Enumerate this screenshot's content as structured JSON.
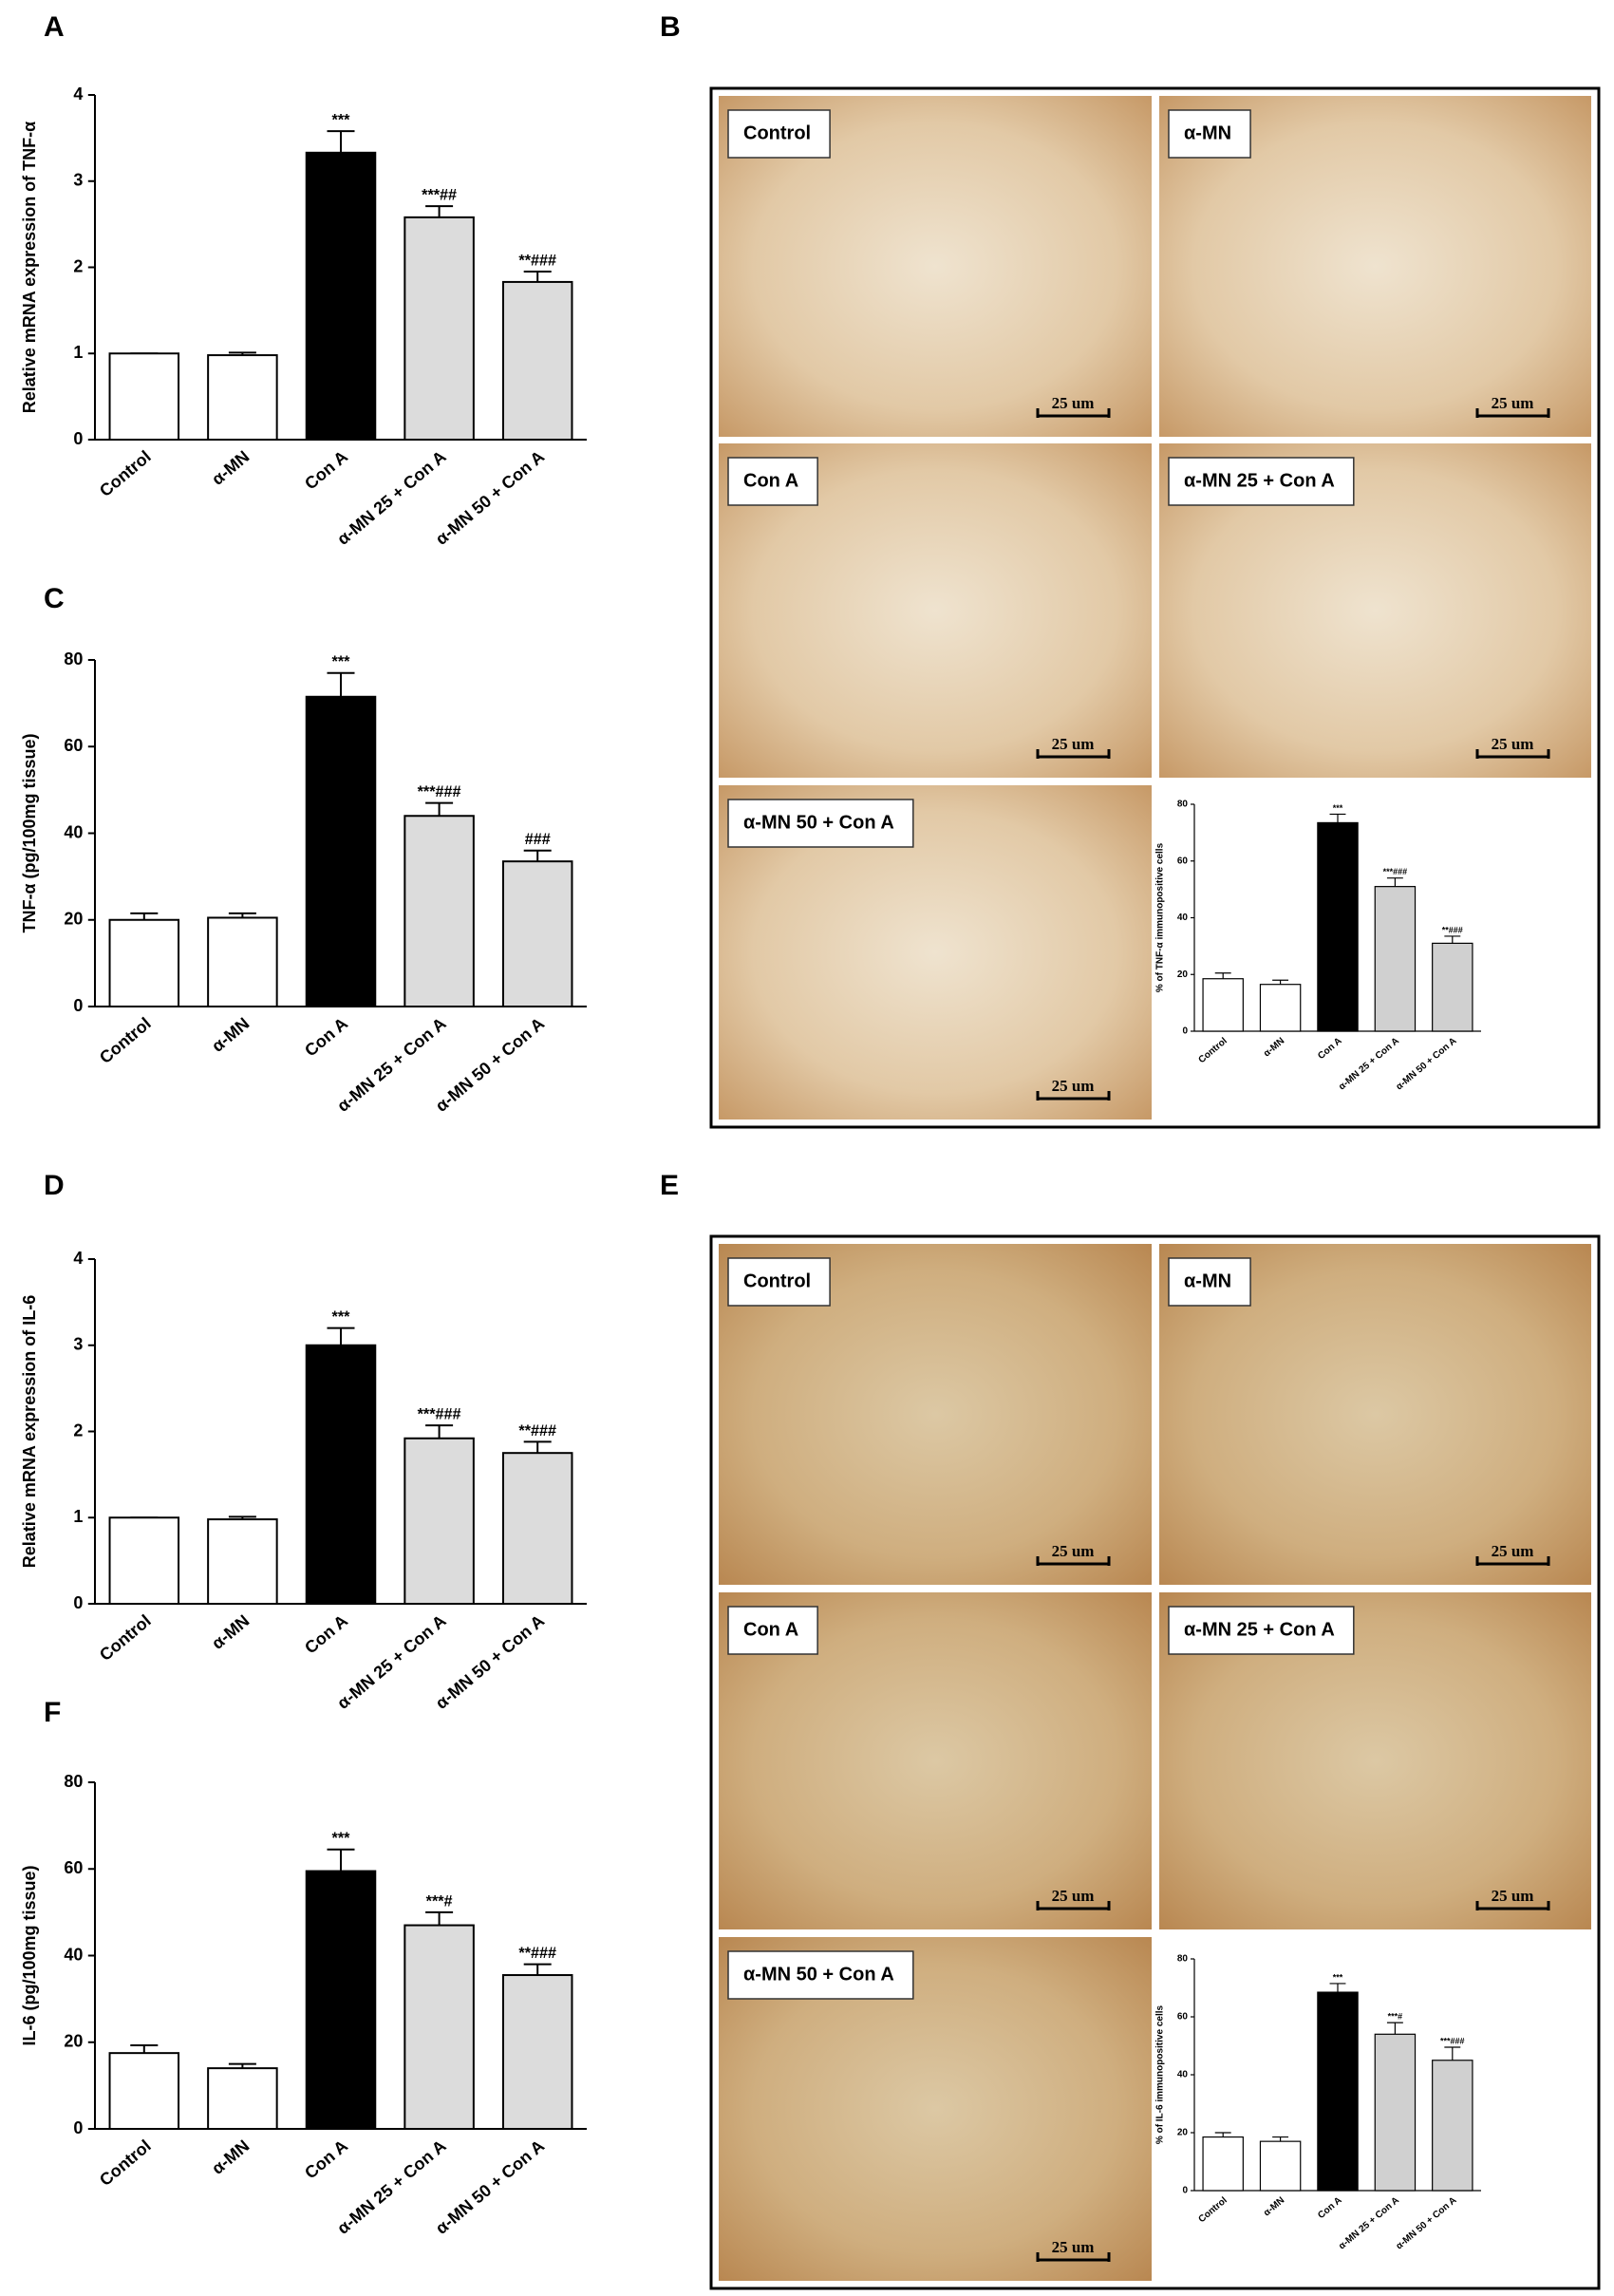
{
  "panel_letters": [
    "A",
    "B",
    "C",
    "D",
    "E",
    "F"
  ],
  "chart_data": [
    {
      "type": "bar",
      "ylabel": "Relative mRNA expression of TNF-α",
      "categories": [
        "Control",
        "α-MN",
        "Con A",
        "α-MN 25 + Con A",
        "α-MN 50 + Con A"
      ],
      "values": [
        1.0,
        0.98,
        3.33,
        2.58,
        1.83
      ],
      "errors": [
        0,
        0.03,
        0.25,
        0.13,
        0.12
      ],
      "annotations": [
        null,
        null,
        "***",
        "***##",
        "**###"
      ],
      "colors": [
        "#ffffff",
        "#ffffff",
        "#000000",
        "#dcdcdc",
        "#dcdcdc"
      ],
      "ylim": [
        0,
        4
      ],
      "yticks": [
        0,
        1,
        2,
        3,
        4
      ]
    },
    {
      "type": "bar",
      "ylabel": "TNF-α (pg/100mg tissue)",
      "categories": [
        "Control",
        "α-MN",
        "Con A",
        "α-MN 25 + Con A",
        "α-MN 50 + Con A"
      ],
      "values": [
        20,
        20.5,
        71.5,
        44,
        33.5
      ],
      "errors": [
        1.5,
        1,
        5.5,
        3,
        2.5
      ],
      "annotations": [
        null,
        null,
        "***",
        "***###",
        "###"
      ],
      "colors": [
        "#ffffff",
        "#ffffff",
        "#000000",
        "#dcdcdc",
        "#dcdcdc"
      ],
      "ylim": [
        0,
        80
      ],
      "yticks": [
        0,
        20,
        40,
        60,
        80
      ]
    },
    {
      "type": "bar",
      "ylabel": "Relative mRNA expression of IL-6",
      "categories": [
        "Control",
        "α-MN",
        "Con A",
        "α-MN 25 + Con A",
        "α-MN 50 + Con A"
      ],
      "values": [
        1.0,
        0.98,
        3.0,
        1.92,
        1.75
      ],
      "errors": [
        0,
        0.03,
        0.2,
        0.15,
        0.13
      ],
      "annotations": [
        null,
        null,
        "***",
        "***###",
        "**###"
      ],
      "colors": [
        "#ffffff",
        "#ffffff",
        "#000000",
        "#dcdcdc",
        "#dcdcdc"
      ],
      "ylim": [
        0,
        4
      ],
      "yticks": [
        0,
        1,
        2,
        3,
        4
      ]
    },
    {
      "type": "bar",
      "ylabel": "IL-6 (pg/100mg tissue)",
      "categories": [
        "Control",
        "α-MN",
        "Con A",
        "α-MN 25 + Con A",
        "α-MN 50 + Con A"
      ],
      "values": [
        17.5,
        14,
        59.5,
        47,
        35.5
      ],
      "errors": [
        1.8,
        1,
        5,
        3,
        2.5
      ],
      "annotations": [
        null,
        null,
        "***",
        "***#",
        "**###"
      ],
      "colors": [
        "#ffffff",
        "#ffffff",
        "#000000",
        "#dcdcdc",
        "#dcdcdc"
      ],
      "ylim": [
        0,
        80
      ],
      "yticks": [
        0,
        20,
        40,
        60,
        80
      ]
    },
    {
      "type": "bar",
      "ylabel": "% of TNF-α immunopositive cells",
      "categories": [
        "Control",
        "α-MN",
        "Con A",
        "α-MN 25 + Con A",
        "α-MN 50 + Con A"
      ],
      "values": [
        18.5,
        16.5,
        73.5,
        51,
        31
      ],
      "errors": [
        2,
        1.5,
        3,
        3,
        2.5
      ],
      "annotations": [
        null,
        null,
        "***",
        "***###",
        "**###"
      ],
      "colors": [
        "#ffffff",
        "#ffffff",
        "#000000",
        "#d0d0d0",
        "#d0d0d0"
      ],
      "ylim": [
        0,
        80
      ],
      "yticks": [
        0,
        20,
        40,
        60,
        80
      ]
    },
    {
      "type": "bar",
      "ylabel": "% of IL-6 immunopositive cells",
      "categories": [
        "Control",
        "α-MN",
        "Con A",
        "α-MN 25 + Con A",
        "α-MN 50 + Con A"
      ],
      "values": [
        18.5,
        17,
        68.5,
        54,
        45
      ],
      "errors": [
        1.5,
        1.5,
        3,
        4,
        4.5
      ],
      "annotations": [
        null,
        null,
        "***",
        "***#",
        "***###"
      ],
      "colors": [
        "#ffffff",
        "#ffffff",
        "#000000",
        "#d0d0d0",
        "#d0d0d0"
      ],
      "ylim": [
        0,
        80
      ],
      "yticks": [
        0,
        20,
        40,
        60,
        80
      ]
    }
  ],
  "micrographs": {
    "B": {
      "labels": [
        "Control",
        "α-MN",
        "Con A",
        "α-MN 25 + Con A",
        "α-MN 50 + Con A"
      ],
      "scale_labels": [
        "25 um",
        "25 um",
        "25 um",
        "25 um",
        "25 um"
      ]
    },
    "E": {
      "labels": [
        "Control",
        "α-MN",
        "Con A",
        "α-MN 25 + Con A",
        "α-MN 50 + Con A"
      ],
      "scale_labels": [
        "25 um",
        "25 um",
        "25 um",
        "25 um",
        "25 um"
      ]
    }
  }
}
